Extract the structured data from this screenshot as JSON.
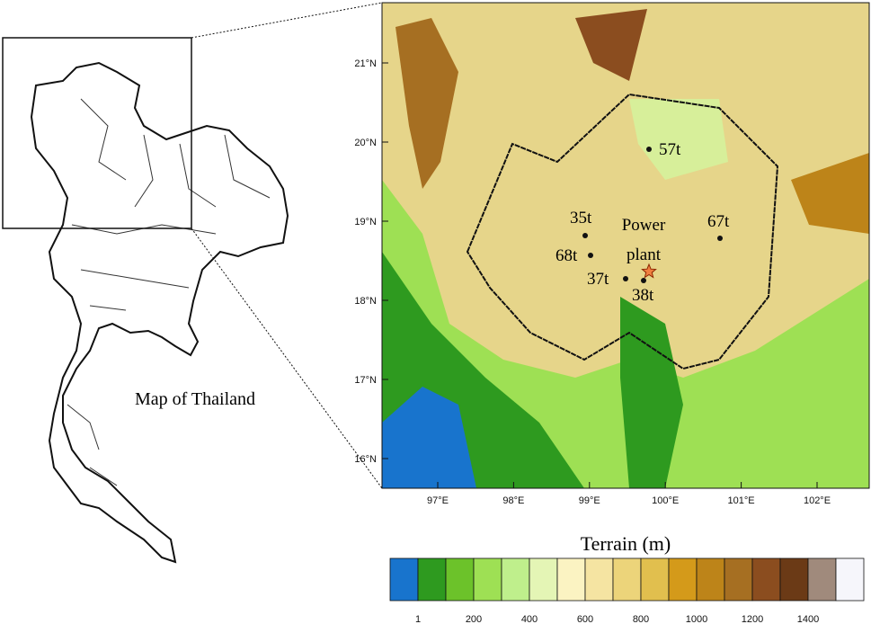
{
  "overview_map": {
    "label": "Map of Thailand"
  },
  "terrain_map": {
    "lat_ticks": [
      "21°N",
      "20°N",
      "19°N",
      "18°N",
      "17°N",
      "16°N"
    ],
    "lon_ticks": [
      "97°E",
      "98°E",
      "99°E",
      "100°E",
      "101°E",
      "102°E"
    ],
    "stations": [
      "57t",
      "35t",
      "68t",
      "37t",
      "38t",
      "67t"
    ],
    "power_plant": [
      "Power",
      "plant"
    ]
  },
  "colorbar": {
    "title": "Terrain (m)",
    "colors": [
      "#1874cd",
      "#2e9a1f",
      "#6cc22a",
      "#9ee054",
      "#bfef8c",
      "#e4f5b5",
      "#fbf3c2",
      "#f5e4a2",
      "#ecd47a",
      "#e1bf4e",
      "#d49a1a",
      "#bd8419",
      "#a66f22",
      "#8b4d1f",
      "#6b3a16",
      "#a08a7c",
      "#f6f6fb"
    ],
    "labels": [
      1,
      200,
      400,
      600,
      800,
      1000,
      1200,
      1400
    ]
  }
}
